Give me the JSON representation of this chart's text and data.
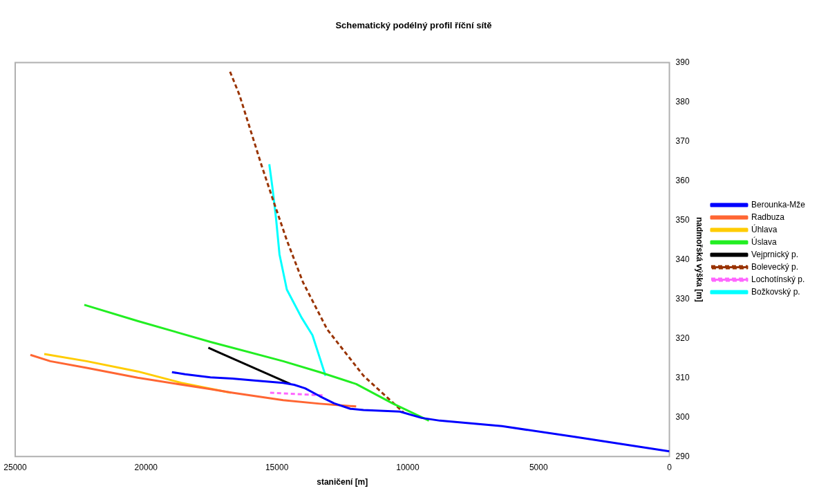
{
  "chart_data": {
    "type": "line",
    "title": "Schematický podélný profil říční sítě",
    "xlabel": "staničení [m]",
    "ylabel": "nadmořská výška [m]",
    "xlim": [
      25000,
      0
    ],
    "xticks": [
      25000,
      20000,
      15000,
      10000,
      5000,
      0
    ],
    "ylim": [
      290,
      390
    ],
    "yticks": [
      290,
      300,
      310,
      320,
      330,
      340,
      350,
      360,
      370,
      380,
      390
    ],
    "grid": false,
    "legend": "right",
    "marker": "none",
    "line_style": "solid",
    "series": [
      {
        "name": "Berounka-Mže",
        "color": "#0000ff",
        "x": [
          19010,
          18510,
          17540,
          16700,
          15870,
          14760,
          14340,
          13920,
          13360,
          12810,
          12190,
          11690,
          10300,
          9470,
          8770,
          6400,
          3620,
          0
        ],
        "values": [
          311.4,
          310.9,
          310.1,
          309.8,
          309.3,
          308.7,
          308.2,
          307.3,
          305.3,
          303.5,
          302.1,
          301.8,
          301.4,
          299.8,
          299.1,
          297.7,
          295.0,
          291.3
        ]
      },
      {
        "name": "Radbuza",
        "color": "#ff6633",
        "x": [
          24420,
          23660,
          22270,
          20320,
          17540,
          16700,
          14760,
          13360,
          11970
        ],
        "values": [
          315.8,
          314.2,
          312.5,
          310.0,
          307.1,
          306.2,
          304.3,
          303.4,
          302.7
        ]
      },
      {
        "name": "Úhlava",
        "color": "#ffcc00",
        "x": [
          23890,
          22270,
          20320,
          18650,
          16760
        ],
        "values": [
          316.0,
          314.2,
          311.6,
          308.7,
          306.2
        ]
      },
      {
        "name": "Úslava",
        "color": "#22ee22",
        "x": [
          22360,
          20320,
          17540,
          14760,
          13360,
          11970,
          10580,
          9190
        ],
        "values": [
          328.5,
          324.4,
          319.1,
          314.2,
          311.4,
          308.4,
          303.5,
          299.1
        ]
      },
      {
        "name": "Vejprnický p.",
        "color": "#000000",
        "x": [
          17620,
          14480
        ],
        "values": [
          317.6,
          308.4
        ]
      },
      {
        "name": "Bolevecký p.",
        "color": "#993300",
        "line_style": "dashed",
        "x": [
          16790,
          16430,
          16010,
          15590,
          15170,
          14620,
          14000,
          13080,
          11690,
          10160
        ],
        "values": [
          387.7,
          381.8,
          372.9,
          364.0,
          355.6,
          344.9,
          334.2,
          322.3,
          310.5,
          301.2
        ]
      },
      {
        "name": "Lochotínský p.",
        "color": "#ff66ff",
        "line_style": "dashed",
        "x": [
          15260,
          13220
        ],
        "values": [
          306.2,
          305.5
        ]
      },
      {
        "name": "Božkovský p.",
        "color": "#00ffff",
        "x": [
          15290,
          15170,
          15030,
          14900,
          14620,
          14060,
          13640,
          13140
        ],
        "values": [
          364.2,
          358.3,
          350.3,
          341.3,
          332.4,
          325.3,
          320.8,
          310.5
        ]
      }
    ]
  }
}
